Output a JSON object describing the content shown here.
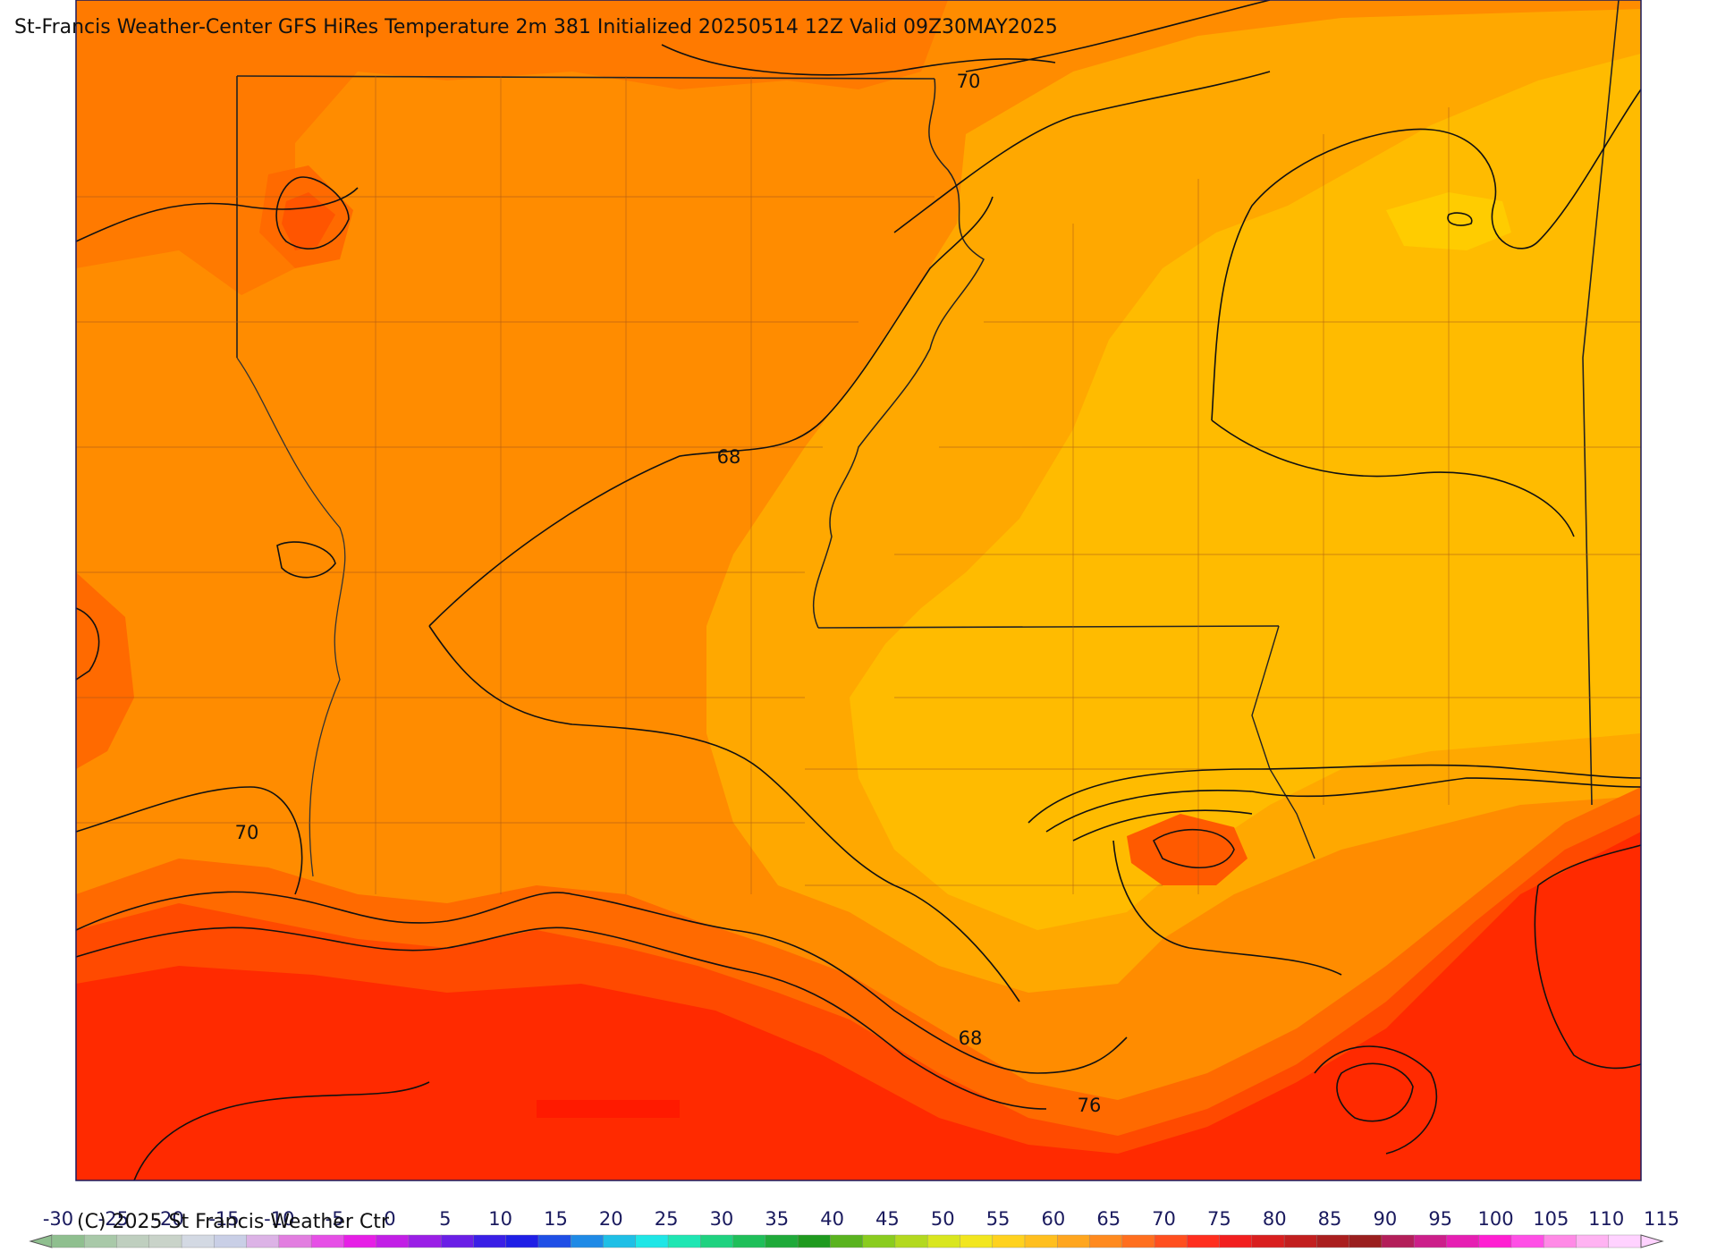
{
  "title": "St-Francis Weather-Center GFS HiRes Temperature 2m  381 Initialized 20250514 12Z Valid 09Z30MAY2025",
  "copyright": "(C) 2025 St Francis Weather Ctr",
  "contour_labels": [
    "70",
    "68",
    "70",
    "68",
    "76"
  ],
  "colorbar": {
    "ticks": [
      "-30",
      "-25",
      "-20",
      "-15",
      "-10",
      "-5",
      "0",
      "5",
      "10",
      "15",
      "20",
      "25",
      "30",
      "35",
      "40",
      "45",
      "50",
      "55",
      "60",
      "65",
      "70",
      "75",
      "80",
      "85",
      "90",
      "95",
      "100",
      "105",
      "110",
      "115"
    ],
    "colors": [
      "#8fbf8f",
      "#a9c9a9",
      "#bfcfbf",
      "#c9d3c9",
      "#d3d9e3",
      "#c9cfe6",
      "#dcb3e6",
      "#e27ee0",
      "#e64fe6",
      "#e61fe6",
      "#c21fe6",
      "#9a1fe6",
      "#6a1fe6",
      "#3a1fe6",
      "#1f1fe6",
      "#1f4fe6",
      "#1f8ae6",
      "#1fbfe6",
      "#1fe6e6",
      "#1fe6b3",
      "#1fd280",
      "#1fbf5a",
      "#1faa3a",
      "#1f9a1f",
      "#5ab31f",
      "#8acc1f",
      "#b3d91f",
      "#d9e61f",
      "#f2e61f",
      "#ffd21f",
      "#ffbf1f",
      "#ffa61f",
      "#ff8a1f",
      "#ff6f1f",
      "#ff4f1f",
      "#ff2f1f",
      "#f21f1f",
      "#d91f1f",
      "#c21f1f",
      "#aa1f1f",
      "#9a1f1f",
      "#b31f5a",
      "#cc1f8a",
      "#e61fb3",
      "#ff1fd2",
      "#ff4fe6",
      "#ff8ae6",
      "#ffb3f2",
      "#ffd2ff"
    ]
  }
}
